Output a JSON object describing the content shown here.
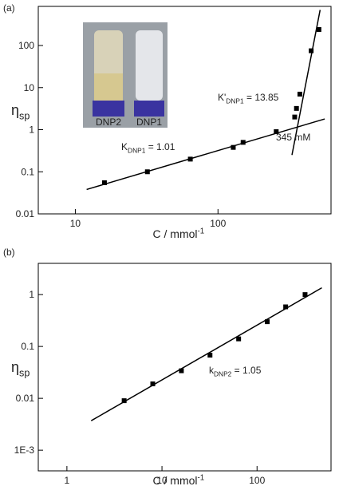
{
  "chart_data": [
    {
      "type": "scatter",
      "panel_label": "(a)",
      "x_label": {
        "main": "C / mmol",
        "sup": "-1"
      },
      "y_label": {
        "main": "η",
        "sub": "sp"
      },
      "xlog": true,
      "ylog": true,
      "xlim": [
        5.5,
        620
      ],
      "ylim": [
        0.01,
        850
      ],
      "xticks": [
        10,
        100
      ],
      "yticks": [
        0.01,
        0.1,
        1,
        10,
        100
      ],
      "series": [
        {
          "color": "#000000",
          "x": [
            16,
            32,
            64,
            128,
            150,
            256,
            345,
            355,
            375,
            450,
            510
          ],
          "values": [
            0.055,
            0.1,
            0.2,
            0.38,
            0.5,
            0.9,
            2.0,
            3.2,
            7,
            75,
            240
          ]
        }
      ],
      "fits": [
        {
          "x": [
            12,
            560
          ],
          "values": [
            0.038,
            1.8
          ]
        },
        {
          "x": [
            330,
            520
          ],
          "values": [
            0.25,
            700
          ]
        }
      ],
      "annotations": [
        {
          "main": "K",
          "sub": "DNP1",
          "tail": " = 1.01"
        },
        {
          "main": "K'",
          "sub": "DNP1",
          "tail": " = 13.85"
        },
        {
          "main": "345 mM"
        }
      ],
      "inset_labels": [
        "DNP2",
        "DNP1"
      ]
    },
    {
      "type": "scatter",
      "panel_label": "(b)",
      "x_label": {
        "main": "C / mmol",
        "sup": "-1"
      },
      "y_label": {
        "main": "η",
        "sub": "sp"
      },
      "xlog": true,
      "ylog": true,
      "xlim": [
        0.5,
        600
      ],
      "ylim": [
        0.0004,
        4
      ],
      "xticks": [
        1,
        10,
        100
      ],
      "yticks": [
        {
          "value": 0.001,
          "label": "1E-3"
        },
        0.01,
        0.1,
        1
      ],
      "series": [
        {
          "color": "#000000",
          "x": [
            4,
            8,
            16,
            32,
            64,
            128,
            200,
            320
          ],
          "values": [
            0.009,
            0.019,
            0.034,
            0.068,
            0.14,
            0.3,
            0.58,
            1.0
          ]
        }
      ],
      "fits": [
        {
          "x": [
            1.8,
            480
          ],
          "values": [
            0.0037,
            1.35
          ]
        }
      ],
      "annotations": [
        {
          "main": "k",
          "sub": "DNP2",
          "tail": " = 1.05"
        }
      ]
    }
  ]
}
